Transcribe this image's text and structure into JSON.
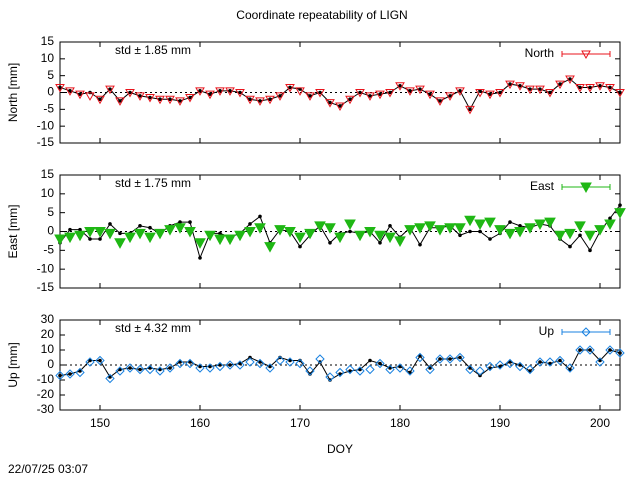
{
  "title": "Coordinate repeatability of LIGN",
  "timestamp": "22/07/25 03:07",
  "chart_data": [
    {
      "type": "line",
      "ylabel": "North [mm]",
      "annotation": "std ± 1.85 mm",
      "x": [
        146,
        147,
        148,
        149,
        150,
        151,
        152,
        153,
        154,
        155,
        156,
        157,
        158,
        159,
        160,
        161,
        162,
        163,
        164,
        165,
        166,
        167,
        168,
        169,
        170,
        171,
        172,
        173,
        174,
        175,
        176,
        177,
        178,
        179,
        180,
        181,
        182,
        183,
        184,
        185,
        186,
        187,
        188,
        189,
        190,
        191,
        192,
        193,
        194,
        195,
        196,
        197,
        198,
        199,
        200,
        201,
        202
      ],
      "xlim": [
        146,
        202
      ],
      "xticks": [
        150,
        160,
        170,
        180,
        190,
        200
      ],
      "ylim": [
        -15,
        15
      ],
      "yticks": [
        -15,
        -10,
        -5,
        0,
        5,
        10,
        15
      ],
      "legend": "upper right",
      "series": [
        {
          "color": "#000000",
          "values": [
            1.5,
            0.5,
            -0.5,
            0,
            -2,
            1,
            -2.5,
            0,
            -1,
            -1.5,
            -2,
            -2,
            -2.5,
            -1.5,
            0.5,
            -0.5,
            0.5,
            0.5,
            0,
            -2,
            -2.5,
            -2,
            -1,
            1.5,
            1,
            -1,
            0,
            -3,
            -4,
            -2,
            0,
            -1,
            -0.5,
            0,
            2,
            0.5,
            1,
            -0.5,
            -2.5,
            -1,
            0.5,
            -5,
            0.5,
            -0.5,
            0,
            2.5,
            2,
            1,
            1,
            0,
            2.5,
            4,
            1.5,
            1.5,
            2,
            1.5,
            0
          ]
        },
        {
          "name": "North",
          "color": "#e8141c",
          "values": [
            1.5,
            0.5,
            -0.5,
            -1,
            -2,
            1,
            -2.5,
            0,
            -1,
            -1.5,
            -2,
            -2,
            -2.5,
            -1.5,
            0.5,
            -0.5,
            0.5,
            0.5,
            0,
            -2,
            -2.5,
            -2,
            -1,
            1.5,
            0.5,
            -1,
            0,
            -3,
            -4,
            -2,
            0,
            -1,
            -0.5,
            0,
            2,
            0.5,
            1,
            -0.5,
            -2.5,
            -1,
            0.5,
            -5,
            0,
            -0.5,
            0,
            2.5,
            2,
            1,
            1,
            0,
            2.5,
            4,
            1.5,
            1.5,
            2,
            1.5,
            0
          ]
        }
      ]
    },
    {
      "type": "line",
      "ylabel": "East [mm]",
      "annotation": "std ± 1.75 mm",
      "x": [
        146,
        147,
        148,
        149,
        150,
        151,
        152,
        153,
        154,
        155,
        156,
        157,
        158,
        159,
        160,
        161,
        162,
        163,
        164,
        165,
        166,
        167,
        168,
        169,
        170,
        171,
        172,
        173,
        174,
        175,
        176,
        177,
        178,
        179,
        180,
        181,
        182,
        183,
        184,
        185,
        186,
        187,
        188,
        189,
        190,
        191,
        192,
        193,
        194,
        195,
        196,
        197,
        198,
        199,
        200,
        201,
        202
      ],
      "xlim": [
        146,
        202
      ],
      "xticks": [
        150,
        160,
        170,
        180,
        190,
        200
      ],
      "ylim": [
        -15,
        15
      ],
      "yticks": [
        -15,
        -10,
        -5,
        0,
        5,
        10,
        15
      ],
      "legend": "upper right",
      "series": [
        {
          "color": "#000000",
          "values": [
            -3,
            0.5,
            0.5,
            -2,
            -2,
            2,
            -0.5,
            -0.5,
            1.5,
            1,
            -0.5,
            1.5,
            2.5,
            2.5,
            -7,
            -0.5,
            -0.5,
            -1.5,
            -0.5,
            2,
            4,
            -3,
            0.5,
            0,
            -4,
            -1,
            1.5,
            -3,
            -0.5,
            0,
            -0.5,
            0,
            -3,
            1.5,
            -1.5,
            1,
            -3.5,
            1,
            1,
            1.5,
            -1,
            0,
            0,
            -2,
            -0.5,
            2.5,
            1.5,
            1,
            2,
            1.5,
            -2,
            -4,
            -1,
            -5,
            0,
            3.5,
            7
          ]
        },
        {
          "name": "East",
          "color": "#1fb714",
          "values": [
            -2,
            -1.5,
            -1,
            0,
            0,
            -0.5,
            -3,
            -1.5,
            -0.5,
            -1.5,
            -0.5,
            0.5,
            1,
            0,
            -3,
            -1,
            -2,
            -2,
            -1,
            0,
            1,
            -4,
            0.5,
            0,
            -1.5,
            -0.5,
            1.5,
            1,
            -1.5,
            2,
            -1,
            0,
            -1,
            -1.5,
            -2.5,
            0.5,
            1,
            1.5,
            0.5,
            1,
            1,
            3,
            2,
            2.5,
            0.5,
            -0.5,
            0,
            1,
            2,
            2.5,
            -1,
            -0.5,
            1.5,
            -1,
            0.5,
            2,
            5
          ]
        }
      ]
    },
    {
      "type": "line",
      "ylabel": "Up [mm]",
      "annotation": "std ± 4.32 mm",
      "xlabel": "DOY",
      "x": [
        146,
        147,
        148,
        149,
        150,
        151,
        152,
        153,
        154,
        155,
        156,
        157,
        158,
        159,
        160,
        161,
        162,
        163,
        164,
        165,
        166,
        167,
        168,
        169,
        170,
        171,
        172,
        173,
        174,
        175,
        176,
        177,
        178,
        179,
        180,
        181,
        182,
        183,
        184,
        185,
        186,
        187,
        188,
        189,
        190,
        191,
        192,
        193,
        194,
        195,
        196,
        197,
        198,
        199,
        200,
        201,
        202
      ],
      "xlim": [
        146,
        202
      ],
      "xticks": [
        150,
        160,
        170,
        180,
        190,
        200
      ],
      "ylim": [
        -30,
        30
      ],
      "yticks": [
        -30,
        -20,
        -10,
        0,
        10,
        20,
        30
      ],
      "legend": "upper right",
      "series": [
        {
          "color": "#000000",
          "values": [
            -7,
            -6,
            -4,
            3,
            3,
            -8,
            -3,
            -2,
            -3,
            -2,
            -3,
            -2,
            2,
            2,
            -1,
            -1,
            0,
            0,
            1,
            5,
            2,
            -1,
            5,
            3,
            3,
            -6,
            2,
            -10,
            -6,
            -4,
            -3,
            3,
            1,
            -2,
            -1,
            -5,
            6,
            -2,
            4,
            4,
            5,
            -2,
            -7,
            -2,
            -1,
            2,
            0,
            -4,
            2,
            1,
            3,
            -3,
            10,
            10,
            3,
            10,
            8
          ]
        },
        {
          "name": "Up",
          "color": "#1a82e0",
          "values": [
            -7,
            -6,
            -5,
            2,
            3,
            -9,
            -4,
            -2,
            -3,
            -3,
            -4,
            -2,
            1,
            1,
            -2,
            -2,
            -1,
            0,
            0,
            2,
            1,
            -2,
            3,
            2,
            1,
            -4,
            4,
            -8,
            -5,
            -3,
            -4,
            -3,
            1,
            -3,
            -2,
            -4,
            5,
            -3,
            4,
            4,
            5,
            -3,
            -4,
            -1,
            0,
            1,
            -1,
            -3,
            2,
            2,
            3,
            -2,
            10,
            10,
            2,
            10,
            8
          ]
        }
      ]
    }
  ]
}
